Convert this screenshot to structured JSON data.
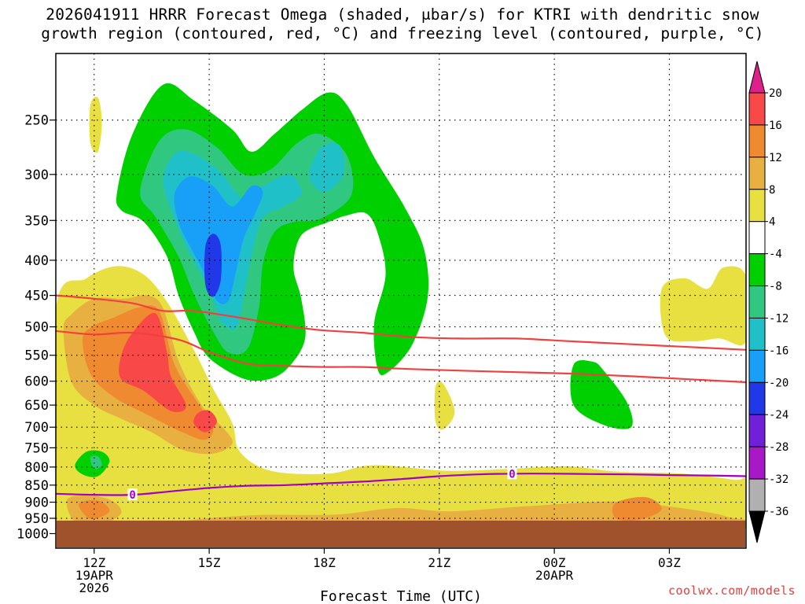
{
  "title": {
    "line1": "2026041911 HRRR Forecast Omega (shaded, μbar/s) for KTRI with dendritic snow",
    "line2": "growth region (contoured, red, °C) and freezing level (contoured, purple, °C)"
  },
  "watermark": "coolwx.com/models",
  "chart_data": {
    "type": "time-height cross section (filled contour)",
    "xlabel": "Forecast Time (UTC)",
    "ylabel": "",
    "x_ticks": [
      {
        "label": "12Z",
        "sub": [
          "19APR",
          "2026"
        ]
      },
      {
        "label": "15Z",
        "sub": []
      },
      {
        "label": "18Z",
        "sub": []
      },
      {
        "label": "21Z",
        "sub": []
      },
      {
        "label": "00Z",
        "sub": [
          "20APR"
        ]
      },
      {
        "label": "03Z",
        "sub": []
      }
    ],
    "x_range_hours": [
      11,
      29
    ],
    "y_ticks": [
      250,
      300,
      350,
      400,
      450,
      500,
      550,
      600,
      650,
      700,
      750,
      800,
      850,
      900,
      950,
      1000
    ],
    "y_range_hPa": [
      200,
      1050
    ],
    "y_scale": "log (pressure)",
    "grid": "dotted",
    "colorbar": {
      "labels": [
        "20",
        "16",
        "12",
        "8",
        "4",
        "-4",
        "-8",
        "-12",
        "-16",
        "-20",
        "-24",
        "-28",
        "-32",
        "-36"
      ],
      "bands": [
        {
          "range": "16 to 20",
          "color": "#f84848"
        },
        {
          "range": "12 to 16",
          "color": "#f08a30"
        },
        {
          "range": "8 to 12",
          "color": "#e8b040"
        },
        {
          "range": "4 to 8",
          "color": "#e8e040"
        },
        {
          "range": "-4 to 4",
          "color": "#ffffff"
        },
        {
          "range": "-8 to -4",
          "color": "#00d000"
        },
        {
          "range": "-12 to -8",
          "color": "#30c880"
        },
        {
          "range": "-16 to -12",
          "color": "#20c0c8"
        },
        {
          "range": "-20 to -16",
          "color": "#18a0f8"
        },
        {
          "range": "-24 to -20",
          "color": "#2038e8"
        },
        {
          "range": "-28 to -24",
          "color": "#7020d8"
        },
        {
          "range": "-32 to -28",
          "color": "#a818c8"
        },
        {
          "range": "-36 to -32",
          "color": "#b0b0b0"
        }
      ],
      "over_color": "#e0208a",
      "under_color": "#000000"
    },
    "terrain_color": "#a0522d",
    "omega_regions": [
      {
        "level": 4,
        "color": "#e8e040",
        "points": [
          [
            11.0,
            472
          ],
          [
            11.8,
            425
          ],
          [
            12.6,
            408
          ],
          [
            13.3,
            420
          ],
          [
            13.9,
            460
          ],
          [
            14.6,
            540
          ],
          [
            15.1,
            615
          ],
          [
            15.6,
            690
          ],
          [
            15.8,
            760
          ],
          [
            16.6,
            810
          ],
          [
            18.1,
            818
          ],
          [
            19.3,
            795
          ],
          [
            21.2,
            810
          ],
          [
            22.8,
            805
          ],
          [
            24.3,
            798
          ],
          [
            25.6,
            812
          ],
          [
            27.4,
            818
          ],
          [
            28.7,
            835
          ],
          [
            29.0,
            840
          ],
          [
            29.0,
            985
          ],
          [
            11.0,
            985
          ]
        ]
      },
      {
        "level": 4,
        "color": "#e8e040",
        "points": [
          [
            11.9,
            238
          ],
          [
            12.1,
            232
          ],
          [
            12.2,
            252
          ],
          [
            12.1,
            278
          ],
          [
            11.9,
            270
          ]
        ]
      },
      {
        "level": 4,
        "color": "#e8e040",
        "points": [
          [
            20.9,
            612
          ],
          [
            21.1,
            605
          ],
          [
            21.4,
            665
          ],
          [
            21.1,
            705
          ],
          [
            20.9,
            685
          ]
        ]
      },
      {
        "level": 4,
        "color": "#e8e040",
        "points": [
          [
            26.8,
            440
          ],
          [
            27.4,
            425
          ],
          [
            28.0,
            440
          ],
          [
            28.4,
            410
          ],
          [
            29.0,
            422
          ],
          [
            29.0,
            525
          ],
          [
            28.3,
            520
          ],
          [
            27.6,
            525
          ],
          [
            26.9,
            515
          ]
        ]
      },
      {
        "level": 8,
        "color": "#e8b040",
        "points": [
          [
            11.2,
            505
          ],
          [
            11.4,
            480
          ],
          [
            12.0,
            455
          ],
          [
            12.8,
            455
          ],
          [
            13.4,
            450
          ],
          [
            13.8,
            470
          ],
          [
            14.2,
            560
          ],
          [
            14.8,
            650
          ],
          [
            15.4,
            705
          ],
          [
            15.6,
            740
          ],
          [
            15.1,
            765
          ],
          [
            14.3,
            755
          ],
          [
            13.5,
            712
          ],
          [
            12.7,
            680
          ],
          [
            12.0,
            650
          ],
          [
            11.4,
            600
          ]
        ]
      },
      {
        "level": 8,
        "color": "#e8b040",
        "points": [
          [
            11.3,
            892
          ],
          [
            11.9,
            880
          ],
          [
            12.5,
            898
          ],
          [
            12.7,
            935
          ],
          [
            12.2,
            968
          ],
          [
            11.5,
            960
          ]
        ]
      },
      {
        "level": 8,
        "color": "#e8b040",
        "points": [
          [
            14.4,
            958
          ],
          [
            16.2,
            940
          ],
          [
            18.3,
            938
          ],
          [
            19.9,
            918
          ],
          [
            21.3,
            928
          ],
          [
            23.3,
            912
          ],
          [
            25.6,
            898
          ],
          [
            27.3,
            918
          ],
          [
            28.5,
            945
          ],
          [
            28.6,
            978
          ],
          [
            14.4,
            978
          ]
        ]
      },
      {
        "level": 12,
        "color": "#f08a30",
        "points": [
          [
            11.7,
            520
          ],
          [
            12.0,
            498
          ],
          [
            12.5,
            485
          ],
          [
            13.2,
            468
          ],
          [
            13.7,
            475
          ],
          [
            14.1,
            568
          ],
          [
            14.7,
            645
          ],
          [
            15.1,
            700
          ],
          [
            14.9,
            730
          ],
          [
            14.3,
            712
          ],
          [
            13.4,
            672
          ],
          [
            12.5,
            632
          ],
          [
            11.9,
            585
          ]
        ]
      },
      {
        "level": 12,
        "color": "#f08a30",
        "points": [
          [
            11.6,
            905
          ],
          [
            12.1,
            895
          ],
          [
            12.4,
            928
          ],
          [
            11.9,
            952
          ]
        ]
      },
      {
        "level": 12,
        "color": "#f08a30",
        "points": [
          [
            25.6,
            902
          ],
          [
            26.4,
            885
          ],
          [
            26.8,
            922
          ],
          [
            26.2,
            955
          ],
          [
            25.6,
            950
          ]
        ]
      },
      {
        "level": 16,
        "color": "#f84848",
        "points": [
          [
            12.7,
            552
          ],
          [
            13.0,
            510
          ],
          [
            13.6,
            478
          ],
          [
            13.9,
            545
          ],
          [
            14.0,
            590
          ],
          [
            14.4,
            652
          ],
          [
            14.0,
            663
          ],
          [
            13.3,
            620
          ],
          [
            12.7,
            595
          ]
        ]
      },
      {
        "level": 16,
        "color": "#f84848",
        "points": [
          [
            14.7,
            668
          ],
          [
            15.0,
            662
          ],
          [
            15.2,
            688
          ],
          [
            14.9,
            712
          ],
          [
            14.6,
            692
          ]
        ]
      },
      {
        "level": -4,
        "color": "#00d000",
        "points": [
          [
            12.6,
            318
          ],
          [
            13.0,
            262
          ],
          [
            13.8,
            222
          ],
          [
            14.6,
            234
          ],
          [
            15.6,
            258
          ],
          [
            16.1,
            278
          ],
          [
            16.7,
            262
          ],
          [
            17.4,
            242
          ],
          [
            18.1,
            228
          ],
          [
            18.6,
            238
          ],
          [
            19.3,
            283
          ],
          [
            20.1,
            335
          ],
          [
            20.6,
            385
          ],
          [
            20.7,
            452
          ],
          [
            20.3,
            530
          ],
          [
            19.7,
            580
          ],
          [
            19.4,
            578
          ],
          [
            19.3,
            495
          ],
          [
            19.6,
            420
          ],
          [
            19.4,
            366
          ],
          [
            19.1,
            342
          ],
          [
            18.6,
            344
          ],
          [
            18.1,
            352
          ],
          [
            17.4,
            368
          ],
          [
            17.2,
            410
          ],
          [
            17.4,
            455
          ],
          [
            17.5,
            520
          ],
          [
            17.1,
            570
          ],
          [
            16.6,
            595
          ],
          [
            15.9,
            595
          ],
          [
            15.0,
            555
          ],
          [
            14.6,
            508
          ],
          [
            14.2,
            450
          ],
          [
            13.9,
            395
          ],
          [
            13.3,
            352
          ],
          [
            12.7,
            338
          ]
        ]
      },
      {
        "level": -4,
        "color": "#00d000",
        "points": [
          [
            11.5,
            795
          ],
          [
            11.8,
            760
          ],
          [
            12.2,
            760
          ],
          [
            12.4,
            785
          ],
          [
            12.1,
            825
          ],
          [
            11.7,
            820
          ]
        ]
      },
      {
        "level": -4,
        "color": "#00d000",
        "points": [
          [
            24.5,
            568
          ],
          [
            25.0,
            562
          ],
          [
            25.3,
            580
          ],
          [
            25.9,
            645
          ],
          [
            26.0,
            700
          ],
          [
            25.3,
            695
          ],
          [
            24.5,
            650
          ]
        ]
      },
      {
        "level": -8,
        "color": "#30c880",
        "points": [
          [
            13.2,
            318
          ],
          [
            13.7,
            268
          ],
          [
            14.4,
            258
          ],
          [
            15.2,
            274
          ],
          [
            15.9,
            300
          ],
          [
            16.6,
            295
          ],
          [
            17.3,
            270
          ],
          [
            17.9,
            262
          ],
          [
            18.6,
            282
          ],
          [
            18.7,
            322
          ],
          [
            17.9,
            348
          ],
          [
            17.2,
            352
          ],
          [
            16.7,
            364
          ],
          [
            16.4,
            405
          ],
          [
            16.3,
            468
          ],
          [
            16.0,
            538
          ],
          [
            15.5,
            545
          ],
          [
            15.1,
            508
          ],
          [
            14.6,
            448
          ],
          [
            14.2,
            395
          ],
          [
            13.6,
            346
          ]
        ]
      },
      {
        "level": -8,
        "color": "#30c880",
        "points": [
          [
            11.9,
            775
          ],
          [
            12.1,
            772
          ],
          [
            12.2,
            795
          ],
          [
            12.0,
            805
          ]
        ]
      },
      {
        "level": -12,
        "color": "#20c0c8",
        "points": [
          [
            13.8,
            308
          ],
          [
            14.1,
            280
          ],
          [
            14.6,
            280
          ],
          [
            15.3,
            298
          ],
          [
            15.9,
            326
          ],
          [
            16.4,
            312
          ],
          [
            17.1,
            300
          ],
          [
            17.4,
            320
          ],
          [
            16.9,
            335
          ],
          [
            16.4,
            347
          ],
          [
            16.1,
            395
          ],
          [
            15.9,
            452
          ],
          [
            15.7,
            502
          ],
          [
            15.3,
            490
          ],
          [
            15.0,
            440
          ],
          [
            14.6,
            402
          ],
          [
            14.2,
            360
          ]
        ]
      },
      {
        "level": -12,
        "color": "#20c0c8",
        "points": [
          [
            17.6,
            302
          ],
          [
            17.9,
            275
          ],
          [
            18.4,
            272
          ],
          [
            18.5,
            300
          ],
          [
            18.0,
            318
          ]
        ]
      },
      {
        "level": -16,
        "color": "#18a0f8",
        "points": [
          [
            14.1,
            320
          ],
          [
            14.5,
            302
          ],
          [
            15.1,
            312
          ],
          [
            15.6,
            334
          ],
          [
            16.1,
            312
          ],
          [
            16.4,
            318
          ],
          [
            16.2,
            342
          ],
          [
            15.9,
            372
          ],
          [
            15.7,
            415
          ],
          [
            15.5,
            458
          ],
          [
            15.2,
            458
          ],
          [
            14.9,
            420
          ],
          [
            14.5,
            382
          ],
          [
            14.2,
            352
          ]
        ]
      },
      {
        "level": -20,
        "color": "#2038e8",
        "points": [
          [
            14.9,
            382
          ],
          [
            15.1,
            366
          ],
          [
            15.3,
            380
          ],
          [
            15.3,
            428
          ],
          [
            15.1,
            452
          ],
          [
            14.9,
            434
          ]
        ]
      }
    ],
    "dgz_lines": {
      "label": "dendritic snow growth region",
      "color": "#f04040",
      "upper": {
        "x": [
          11,
          12,
          13,
          13.8,
          14.6,
          15.8,
          16.8,
          17.8,
          19,
          20.2,
          21.5,
          23,
          24.5,
          26,
          27.5,
          29
        ],
        "y": [
          450,
          455,
          462,
          474,
          474,
          485,
          496,
          505,
          510,
          517,
          520,
          520,
          525,
          530,
          535,
          540
        ]
      },
      "lower": {
        "x": [
          11,
          12,
          13,
          14.2,
          15,
          16,
          17,
          18,
          19,
          20.2,
          21.5,
          23,
          24.5,
          26,
          27.5,
          29
        ],
        "y": [
          507,
          513,
          510,
          522,
          544,
          566,
          570,
          572,
          572,
          576,
          579,
          582,
          585,
          590,
          596,
          602
        ]
      }
    },
    "freezing_level": {
      "label": "0",
      "color": "#a000c8",
      "x": [
        11,
        12,
        13,
        14,
        15,
        16,
        17,
        18,
        19,
        20,
        21,
        22,
        23,
        24,
        25,
        26,
        27,
        28,
        29
      ],
      "y": [
        875,
        878,
        878,
        868,
        858,
        852,
        850,
        845,
        840,
        833,
        825,
        820,
        818,
        818,
        819,
        820,
        822,
        823,
        825
      ],
      "label_at_hours": [
        13,
        22.9
      ]
    }
  }
}
